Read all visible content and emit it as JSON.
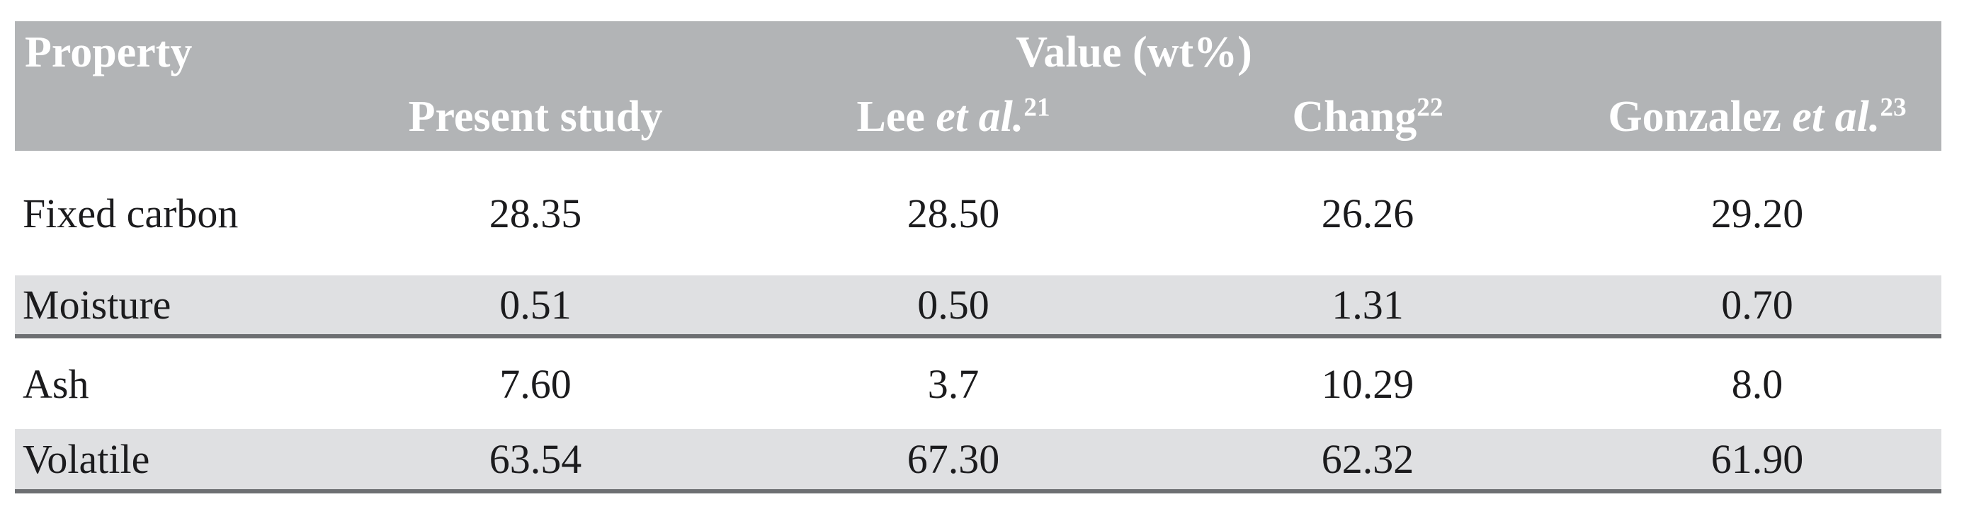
{
  "colors": {
    "header_bg": "#b2b4b6",
    "stripe_bg": "#dfe0e2",
    "rule": "#6d6f72",
    "body_text": "#1b1b1d",
    "header_text": "#ffffff"
  },
  "table": {
    "header": {
      "property_label": "Property",
      "value_group_label": "Value (wt%)",
      "columns": [
        {
          "segments": [
            {
              "t": "Present study",
              "style": "normal"
            }
          ]
        },
        {
          "segments": [
            {
              "t": "Lee ",
              "style": "normal"
            },
            {
              "t": "et al.",
              "style": "italic"
            },
            {
              "t": "21",
              "style": "sup"
            }
          ]
        },
        {
          "segments": [
            {
              "t": "Chang",
              "style": "normal"
            },
            {
              "t": "22",
              "style": "sup"
            }
          ]
        },
        {
          "segments": [
            {
              "t": "Gonzalez ",
              "style": "normal"
            },
            {
              "t": "et al.",
              "style": "italic"
            },
            {
              "t": "23",
              "style": "sup"
            }
          ]
        }
      ]
    },
    "rows": [
      {
        "property": "Fixed carbon",
        "values": [
          "28.35",
          "28.50",
          "26.26",
          "29.20"
        ],
        "shaded": false
      },
      {
        "property": "Moisture",
        "values": [
          "0.51",
          "0.50",
          "1.31",
          "0.70"
        ],
        "shaded": true
      },
      {
        "property": "Ash",
        "values": [
          "7.60",
          "3.7",
          "10.29",
          "8.0"
        ],
        "shaded": false
      },
      {
        "property": "Volatile",
        "values": [
          "63.54",
          "67.30",
          "62.32",
          "61.90"
        ],
        "shaded": true
      }
    ]
  }
}
